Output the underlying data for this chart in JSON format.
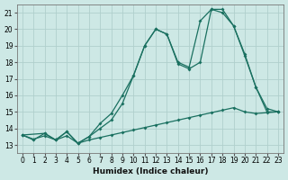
{
  "xlabel": "Humidex (Indice chaleur)",
  "xlim": [
    -0.5,
    23.5
  ],
  "ylim": [
    12.5,
    21.5
  ],
  "yticks": [
    13,
    14,
    15,
    16,
    17,
    18,
    19,
    20,
    21
  ],
  "xticks": [
    0,
    1,
    2,
    3,
    4,
    5,
    6,
    7,
    8,
    9,
    10,
    11,
    12,
    13,
    14,
    15,
    16,
    17,
    18,
    19,
    20,
    21,
    22,
    23
  ],
  "bg_color": "#cde8e5",
  "grid_color": "#b0cfcc",
  "line_color": "#1a7060",
  "line1_x": [
    0,
    1,
    2,
    3,
    4,
    5,
    6,
    7,
    8,
    9,
    10,
    11,
    12,
    13,
    14,
    15,
    16,
    17,
    18,
    19,
    20,
    21,
    22,
    23
  ],
  "line1_y": [
    13.6,
    13.3,
    13.7,
    13.3,
    13.8,
    13.1,
    13.5,
    14.0,
    14.5,
    15.5,
    17.2,
    19.0,
    20.0,
    19.7,
    17.9,
    17.6,
    18.0,
    21.2,
    21.2,
    20.2,
    18.5,
    16.5,
    15.0,
    15.0
  ],
  "line2_x": [
    0,
    2,
    3,
    4,
    5,
    6,
    7,
    8,
    9,
    10,
    11,
    12,
    13,
    14,
    15,
    16,
    17,
    18,
    19,
    20,
    21,
    22,
    23
  ],
  "line2_y": [
    13.6,
    13.7,
    13.3,
    13.8,
    13.1,
    13.5,
    14.3,
    14.9,
    16.0,
    17.2,
    19.0,
    20.0,
    19.7,
    18.0,
    17.7,
    20.5,
    21.2,
    21.0,
    20.2,
    18.4,
    16.5,
    15.2,
    15.0
  ],
  "line3_x": [
    0,
    1,
    2,
    3,
    4,
    5,
    6,
    7,
    8,
    9,
    10,
    11,
    12,
    13,
    14,
    15,
    16,
    17,
    18,
    19,
    20,
    21,
    22,
    23
  ],
  "line3_y": [
    13.6,
    13.35,
    13.55,
    13.3,
    13.55,
    13.1,
    13.3,
    13.45,
    13.6,
    13.75,
    13.9,
    14.05,
    14.2,
    14.35,
    14.5,
    14.65,
    14.8,
    14.95,
    15.1,
    15.25,
    15.0,
    14.9,
    14.95,
    15.0
  ]
}
